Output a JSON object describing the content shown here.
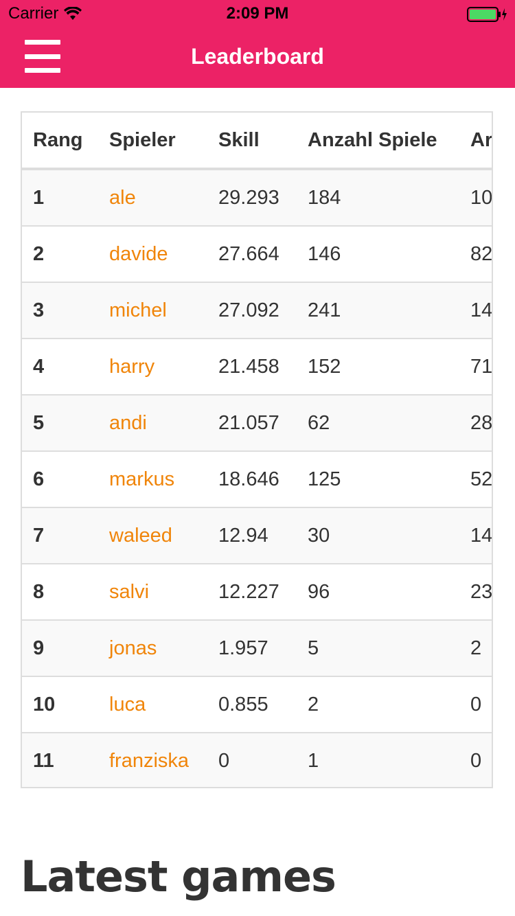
{
  "status_bar": {
    "carrier": "Carrier",
    "time": "2:09 PM"
  },
  "nav": {
    "title": "Leaderboard"
  },
  "leaderboard": {
    "headers": [
      "Rang",
      "Spieler",
      "Skill",
      "Anzahl Spiele",
      "Ar"
    ],
    "rows": [
      {
        "rank": "1",
        "player": "ale",
        "skill": "29.293",
        "games": "184",
        "extra": "10"
      },
      {
        "rank": "2",
        "player": "davide",
        "skill": "27.664",
        "games": "146",
        "extra": "82"
      },
      {
        "rank": "3",
        "player": "michel",
        "skill": "27.092",
        "games": "241",
        "extra": "14"
      },
      {
        "rank": "4",
        "player": "harry",
        "skill": "21.458",
        "games": "152",
        "extra": "71"
      },
      {
        "rank": "5",
        "player": "andi",
        "skill": "21.057",
        "games": "62",
        "extra": "28"
      },
      {
        "rank": "6",
        "player": "markus",
        "skill": "18.646",
        "games": "125",
        "extra": "52"
      },
      {
        "rank": "7",
        "player": "waleed",
        "skill": "12.94",
        "games": "30",
        "extra": "14"
      },
      {
        "rank": "8",
        "player": "salvi",
        "skill": "12.227",
        "games": "96",
        "extra": "23"
      },
      {
        "rank": "9",
        "player": "jonas",
        "skill": "1.957",
        "games": "5",
        "extra": "2"
      },
      {
        "rank": "10",
        "player": "luca",
        "skill": "0.855",
        "games": "2",
        "extra": "0"
      },
      {
        "rank": "11",
        "player": "franziska",
        "skill": "0",
        "games": "1",
        "extra": "0"
      }
    ]
  },
  "section": {
    "latest_games_heading": "Latest games"
  },
  "colors": {
    "header_bg": "#ec2266",
    "link": "#f0850a",
    "battery": "#4cd964"
  },
  "icons": {
    "menu": "hamburger-menu-icon",
    "wifi": "wifi-icon",
    "battery": "battery-charging-icon"
  }
}
